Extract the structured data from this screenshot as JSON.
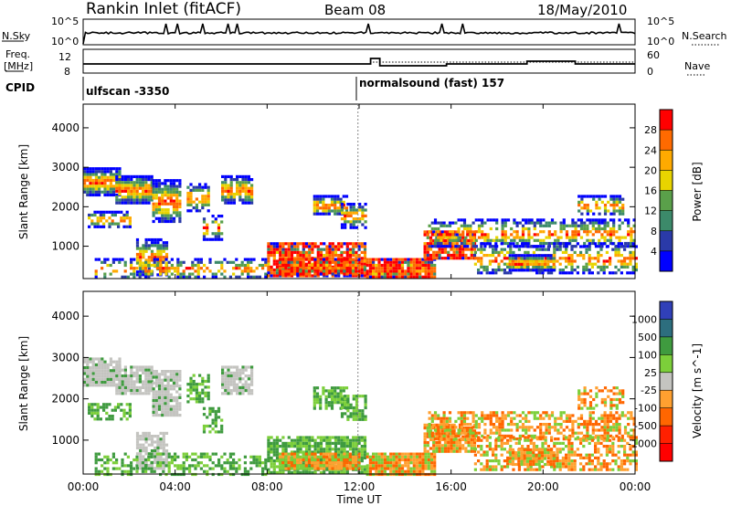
{
  "header": {
    "title": "Rankin Inlet (fitACF)",
    "beam": "Beam 08",
    "date": "18/May/2010"
  },
  "side_labels": {
    "nsky": "N.Sky",
    "nsky_ticks": [
      "10^5",
      "10^0"
    ],
    "nsearch": "N.Search",
    "nsearch_ticks": [
      "10^5",
      "10^0"
    ],
    "freq_line1": "Freq.",
    "freq_line2": "[MHz]",
    "freq_ticks": [
      "12",
      "8"
    ],
    "nave": "Nave",
    "nave_ticks": [
      "60",
      "0"
    ],
    "cpid": "CPID"
  },
  "cpid_segments": [
    {
      "label": "ulfscan -3350"
    },
    {
      "label": "normalsound (fast) 157"
    }
  ],
  "x_axis": {
    "label": "Time UT",
    "ticks": [
      "00:00",
      "04:00",
      "08:00",
      "12:00",
      "16:00",
      "20:00",
      "00:00"
    ]
  },
  "chart_data": [
    {
      "type": "heatmap",
      "title": "",
      "xlabel": "",
      "ylabel": "Slant Range [km]",
      "yticks": [
        "4000",
        "3000",
        "2000",
        "1000"
      ],
      "ylim": [
        180,
        4600
      ],
      "xlim_hours": [
        0,
        24
      ],
      "colorbar": {
        "label": "Power [dB]",
        "ticks": [
          "28",
          "24",
          "20",
          "16",
          "12",
          "8",
          "4"
        ],
        "colors": [
          "#ff0000",
          "#ff6a00",
          "#ffaa00",
          "#e8d400",
          "#5aa04a",
          "#3c8a6a",
          "#2a3aa8",
          "#0000ff"
        ]
      }
    },
    {
      "type": "heatmap",
      "title": "",
      "xlabel": "Time UT",
      "ylabel": "Slant Range [km]",
      "yticks": [
        "4000",
        "3000",
        "2000",
        "1000"
      ],
      "ylim": [
        180,
        4600
      ],
      "xlim_hours": [
        0,
        24
      ],
      "colorbar": {
        "label": "Velocity [m s^-1]",
        "ticks": [
          "1000",
          "500",
          "100",
          "25",
          "-25",
          "-100",
          "-500",
          "-1000"
        ],
        "colors": [
          "#3040b8",
          "#2d6e7e",
          "#3f9b3f",
          "#7ccf3a",
          "#c4c4c0",
          "#ffa030",
          "#ff6600",
          "#ff2000",
          "#ff0000"
        ]
      }
    }
  ]
}
